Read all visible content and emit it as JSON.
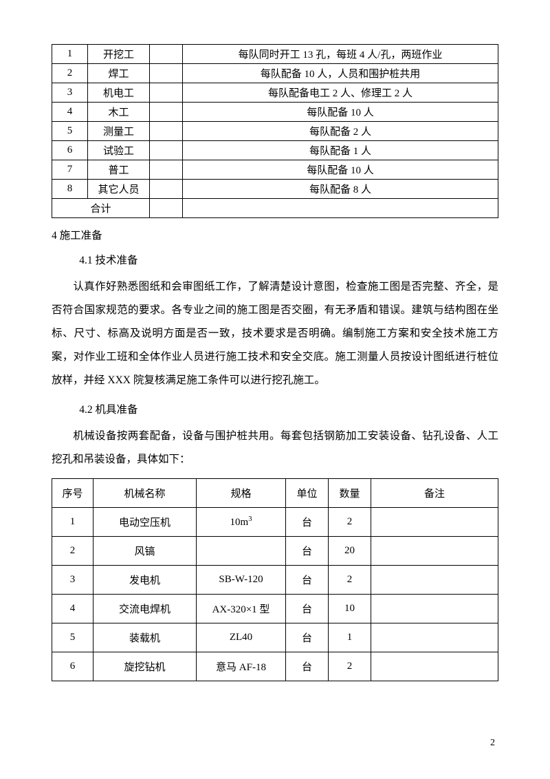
{
  "table1": {
    "rows": [
      {
        "num": "1",
        "job": "开挖工",
        "blank": "",
        "desc": "每队同时开工 13 孔，每班 4 人/孔，两班作业"
      },
      {
        "num": "2",
        "job": "焊工",
        "blank": "",
        "desc": "每队配备 10 人，人员和围护桩共用"
      },
      {
        "num": "3",
        "job": "机电工",
        "blank": "",
        "desc": "每队配备电工 2 人、修理工 2 人"
      },
      {
        "num": "4",
        "job": "木工",
        "blank": "",
        "desc": "每队配备 10 人"
      },
      {
        "num": "5",
        "job": "测量工",
        "blank": "",
        "desc": "每队配备 2 人"
      },
      {
        "num": "6",
        "job": "试验工",
        "blank": "",
        "desc": "每队配备 1 人"
      },
      {
        "num": "7",
        "job": "普工",
        "blank": "",
        "desc": "每队配备 10 人"
      },
      {
        "num": "8",
        "job": "其它人员",
        "blank": "",
        "desc": "每队配备 8 人"
      }
    ],
    "total_label": "合计",
    "total_blank": "",
    "total_desc": ""
  },
  "heading4": "4  施工准备",
  "sub41": "4.1 技术准备",
  "para41": "认真作好熟悉图纸和会审图纸工作，了解清楚设计意图，检查施工图是否完整、齐全，是否符合国家规范的要求。各专业之间的施工图是否交圈，有无矛盾和错误。建筑与结构图在坐标、尺寸、标高及说明方面是否一致，技术要求是否明确。编制施工方案和安全技术施工方案，对作业工班和全体作业人员进行施工技术和安全交底。施工测量人员按设计图纸进行桩位放样，并经 XXX 院复核满足施工条件可以进行挖孔施工。",
  "sub42": "4.2 机具准备",
  "para42": "机械设备按两套配备，设备与围护桩共用。每套包括钢筋加工安装设备、钻孔设备、人工挖孔和吊装设备，具体如下：",
  "table2": {
    "headers": {
      "num": "序号",
      "name": "机械名称",
      "spec": "规格",
      "unit": "单位",
      "qty": "数量",
      "note": "备注"
    },
    "rows": [
      {
        "num": "1",
        "name": "电动空压机",
        "spec_prefix": "10m",
        "spec_sup": "3",
        "unit": "台",
        "qty": "2",
        "note": ""
      },
      {
        "num": "2",
        "name": "风镐",
        "spec": "",
        "unit": "台",
        "qty": "20",
        "note": ""
      },
      {
        "num": "3",
        "name": "发电机",
        "spec": "SB-W-120",
        "unit": "台",
        "qty": "2",
        "note": ""
      },
      {
        "num": "4",
        "name": "交流电焊机",
        "spec": "AX-320×1 型",
        "unit": "台",
        "qty": "10",
        "note": ""
      },
      {
        "num": "5",
        "name": "装载机",
        "spec": "ZL40",
        "unit": "台",
        "qty": "1",
        "note": ""
      },
      {
        "num": "6",
        "name": "旋挖钻机",
        "spec": "意马 AF-18",
        "unit": "台",
        "qty": "2",
        "note": ""
      }
    ]
  },
  "page_number": "2",
  "colors": {
    "text": "#000000",
    "background": "#ffffff",
    "border": "#000000"
  }
}
